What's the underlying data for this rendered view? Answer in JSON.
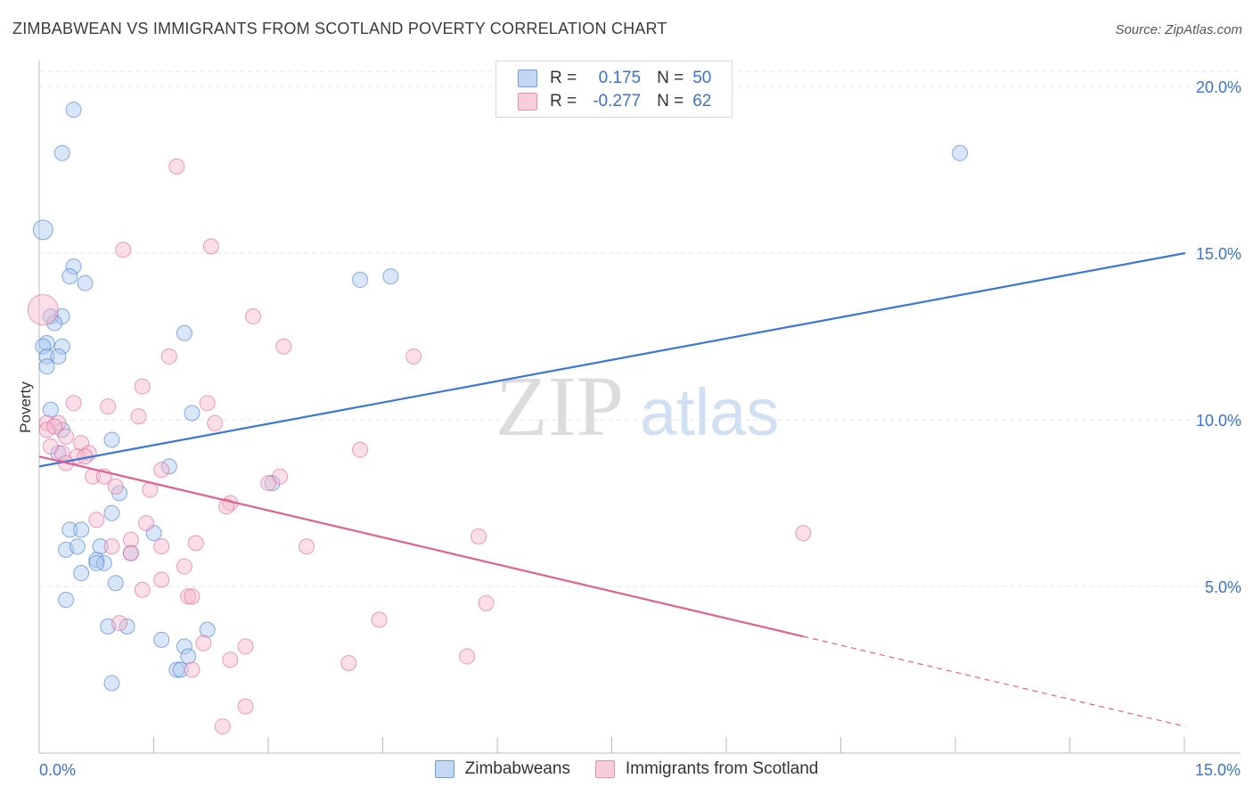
{
  "title": "ZIMBABWEAN VS IMMIGRANTS FROM SCOTLAND POVERTY CORRELATION CHART",
  "source": "Source: ZipAtlas.com",
  "watermark": {
    "zip": "ZIP",
    "atlas": "atlas"
  },
  "legend": {
    "r_label": "R =",
    "n_label": "N =",
    "rows": [
      {
        "name": "Zimbabweans",
        "r": "0.175",
        "n": "50"
      },
      {
        "name": "Immigrants from Scotland",
        "r": "-0.277",
        "n": "62"
      }
    ]
  },
  "chart_data": {
    "type": "scatter",
    "title": "ZIMBABWEAN VS IMMIGRANTS FROM SCOTLAND POVERTY CORRELATION CHART",
    "xlabel": "",
    "ylabel": "Poverty",
    "xlim": [
      0,
      15
    ],
    "ylim": [
      0,
      20
    ],
    "x_tick_labels": [
      "0.0%",
      "15.0%"
    ],
    "y_ticks": [
      5,
      10,
      15,
      20
    ],
    "y_tick_labels": [
      "5.0%",
      "10.0%",
      "15.0%",
      "20.0%"
    ],
    "colors": {
      "blue": "#3a78d4",
      "pink": "#e06090",
      "blue_fill": "#a9c8f0",
      "pink_fill": "#f5b8cc"
    },
    "series": [
      {
        "name": "Zimbabweans",
        "r": 0.175,
        "n": 50,
        "trend": {
          "x1": 0,
          "y1": 8.6,
          "x2": 15,
          "y2": 15.0
        },
        "points": [
          [
            0.45,
            19.3
          ],
          [
            0.3,
            18.0
          ],
          [
            12.05,
            18.0
          ],
          [
            0.05,
            15.7
          ],
          [
            0.45,
            14.6
          ],
          [
            0.4,
            14.3
          ],
          [
            0.6,
            14.1
          ],
          [
            4.2,
            14.2
          ],
          [
            4.6,
            14.3
          ],
          [
            0.15,
            13.1
          ],
          [
            0.3,
            13.1
          ],
          [
            0.2,
            12.9
          ],
          [
            1.9,
            12.6
          ],
          [
            0.1,
            12.3
          ],
          [
            0.05,
            12.2
          ],
          [
            0.3,
            12.2
          ],
          [
            0.1,
            11.9
          ],
          [
            0.25,
            11.9
          ],
          [
            0.1,
            11.6
          ],
          [
            0.15,
            10.3
          ],
          [
            2.0,
            10.2
          ],
          [
            0.3,
            9.7
          ],
          [
            0.95,
            9.4
          ],
          [
            0.25,
            9.0
          ],
          [
            1.7,
            8.6
          ],
          [
            3.05,
            8.1
          ],
          [
            1.05,
            7.8
          ],
          [
            0.95,
            7.2
          ],
          [
            0.4,
            6.7
          ],
          [
            0.55,
            6.7
          ],
          [
            1.5,
            6.6
          ],
          [
            0.35,
            6.1
          ],
          [
            0.5,
            6.2
          ],
          [
            0.8,
            6.2
          ],
          [
            0.75,
            5.8
          ],
          [
            0.85,
            5.7
          ],
          [
            0.75,
            5.7
          ],
          [
            1.2,
            6.0
          ],
          [
            0.55,
            5.4
          ],
          [
            1.0,
            5.1
          ],
          [
            0.35,
            4.6
          ],
          [
            0.9,
            3.8
          ],
          [
            1.15,
            3.8
          ],
          [
            1.6,
            3.4
          ],
          [
            2.2,
            3.7
          ],
          [
            1.9,
            3.2
          ],
          [
            1.95,
            2.9
          ],
          [
            1.8,
            2.5
          ],
          [
            0.95,
            2.1
          ],
          [
            1.85,
            2.5
          ]
        ]
      },
      {
        "name": "Immigrants from Scotland",
        "r": -0.277,
        "n": 62,
        "trend": {
          "x1": 0,
          "y1": 8.9,
          "x2": 10.0,
          "y2": 3.5,
          "dash_x2": 15,
          "dash_y2": 0.8
        },
        "points": [
          [
            1.8,
            17.6
          ],
          [
            1.1,
            15.1
          ],
          [
            2.25,
            15.2
          ],
          [
            0.05,
            13.3
          ],
          [
            2.8,
            13.1
          ],
          [
            3.2,
            12.2
          ],
          [
            1.7,
            11.9
          ],
          [
            4.9,
            11.9
          ],
          [
            1.35,
            11.0
          ],
          [
            0.45,
            10.5
          ],
          [
            0.9,
            10.4
          ],
          [
            2.2,
            10.5
          ],
          [
            1.3,
            10.1
          ],
          [
            2.3,
            9.9
          ],
          [
            0.1,
            9.9
          ],
          [
            0.25,
            9.9
          ],
          [
            0.1,
            9.7
          ],
          [
            0.35,
            9.5
          ],
          [
            0.55,
            9.3
          ],
          [
            0.65,
            9.0
          ],
          [
            4.2,
            9.1
          ],
          [
            0.5,
            8.9
          ],
          [
            0.3,
            9.0
          ],
          [
            0.35,
            8.7
          ],
          [
            1.6,
            8.5
          ],
          [
            0.7,
            8.3
          ],
          [
            0.85,
            8.3
          ],
          [
            3.15,
            8.3
          ],
          [
            1.0,
            8.0
          ],
          [
            1.45,
            7.9
          ],
          [
            3.0,
            8.1
          ],
          [
            2.5,
            7.5
          ],
          [
            2.45,
            7.4
          ],
          [
            0.75,
            7.0
          ],
          [
            1.4,
            6.9
          ],
          [
            10.0,
            6.6
          ],
          [
            5.75,
            6.5
          ],
          [
            1.2,
            6.4
          ],
          [
            2.05,
            6.3
          ],
          [
            1.6,
            6.2
          ],
          [
            3.5,
            6.2
          ],
          [
            0.95,
            6.2
          ],
          [
            1.2,
            6.0
          ],
          [
            1.9,
            5.6
          ],
          [
            1.6,
            5.2
          ],
          [
            1.35,
            4.9
          ],
          [
            1.95,
            4.7
          ],
          [
            2.0,
            4.7
          ],
          [
            5.85,
            4.5
          ],
          [
            4.45,
            4.0
          ],
          [
            1.05,
            3.9
          ],
          [
            2.15,
            3.3
          ],
          [
            2.7,
            3.2
          ],
          [
            5.6,
            2.9
          ],
          [
            2.5,
            2.8
          ],
          [
            4.05,
            2.7
          ],
          [
            2.0,
            2.5
          ],
          [
            2.7,
            1.4
          ],
          [
            2.4,
            0.8
          ],
          [
            0.2,
            9.8
          ],
          [
            0.15,
            9.2
          ],
          [
            0.6,
            8.9
          ]
        ]
      }
    ]
  }
}
